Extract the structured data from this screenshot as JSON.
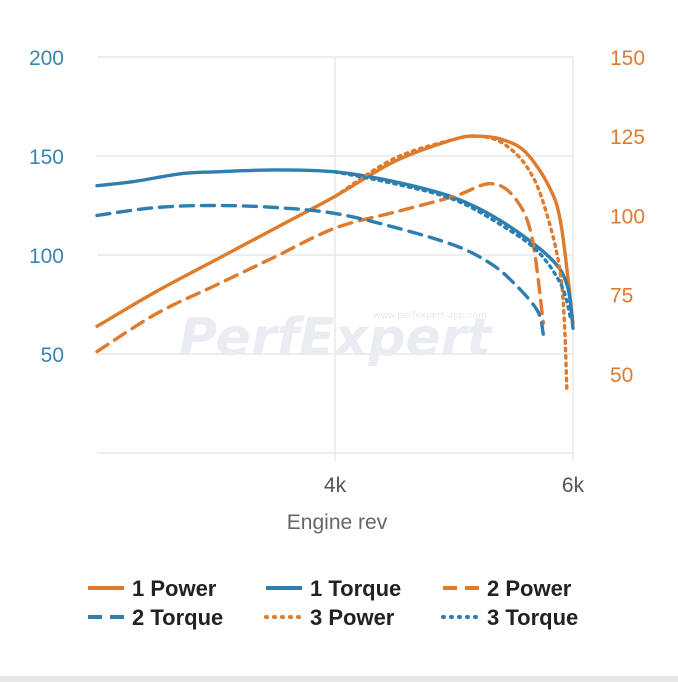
{
  "chart_data": {
    "type": "line",
    "xlabel": "Engine rev",
    "xlim": [
      2000,
      6000
    ],
    "x_ticks": [
      "4k",
      "6k"
    ],
    "y_left": {
      "ticks": [
        50,
        100,
        150,
        200
      ],
      "range": [
        0,
        200
      ],
      "color": "#3a85b0"
    },
    "y_right": {
      "ticks": [
        50,
        75,
        100,
        125,
        150
      ],
      "range": [
        25,
        150
      ],
      "color": "#de7b2c"
    },
    "grid": true,
    "legend_position": "bottom",
    "watermark": {
      "text": "PerfExpert",
      "url": "www.perfexpert-app.com"
    },
    "series": [
      {
        "name": "1 Power",
        "axis": "right",
        "style": "solid",
        "color": "#de7b2c",
        "x": [
          2000,
          2500,
          3000,
          3500,
          4000,
          4500,
          5000,
          5200,
          5400,
          5600,
          5800,
          5900,
          6000
        ],
        "y": [
          65,
          76,
          86,
          96,
          106,
          117,
          124,
          125,
          124,
          120,
          109,
          97,
          66
        ]
      },
      {
        "name": "1 Torque",
        "axis": "left",
        "style": "solid",
        "color": "#2e7eb0",
        "x": [
          2000,
          2300,
          2700,
          3000,
          3500,
          4000,
          4500,
          5000,
          5400,
          5800,
          5950,
          6000
        ],
        "y": [
          135,
          137,
          141,
          142,
          143,
          142,
          137,
          129,
          117,
          99,
          85,
          63
        ]
      },
      {
        "name": "2 Power",
        "axis": "right",
        "style": "dashed",
        "color": "#de7b2c",
        "x": [
          2000,
          2500,
          3000,
          3500,
          4000,
          4500,
          5000,
          5300,
          5500,
          5650,
          5750
        ],
        "y": [
          57,
          69,
          78,
          87,
          96,
          101,
          106,
          110,
          106,
          94,
          66
        ]
      },
      {
        "name": "2 Torque",
        "axis": "left",
        "style": "dashed",
        "color": "#2e7eb0",
        "x": [
          2000,
          2500,
          3000,
          3500,
          4000,
          4500,
          5000,
          5300,
          5500,
          5700,
          5750
        ],
        "y": [
          120,
          124,
          125,
          124,
          121,
          114,
          105,
          96,
          86,
          72,
          60
        ]
      },
      {
        "name": "3 Power",
        "axis": "right",
        "style": "dotted",
        "color": "#de7b2c",
        "x": [
          4000,
          4500,
          5000,
          5200,
          5400,
          5600,
          5750,
          5900,
          5950
        ],
        "y": [
          106,
          118,
          124,
          125,
          123,
          116,
          104,
          80,
          44
        ]
      },
      {
        "name": "3 Torque",
        "axis": "left",
        "style": "dotted",
        "color": "#2e7eb0",
        "x": [
          4000,
          4500,
          5000,
          5400,
          5700,
          5900,
          5980
        ],
        "y": [
          142,
          136,
          128,
          115,
          102,
          85,
          68
        ]
      }
    ]
  }
}
